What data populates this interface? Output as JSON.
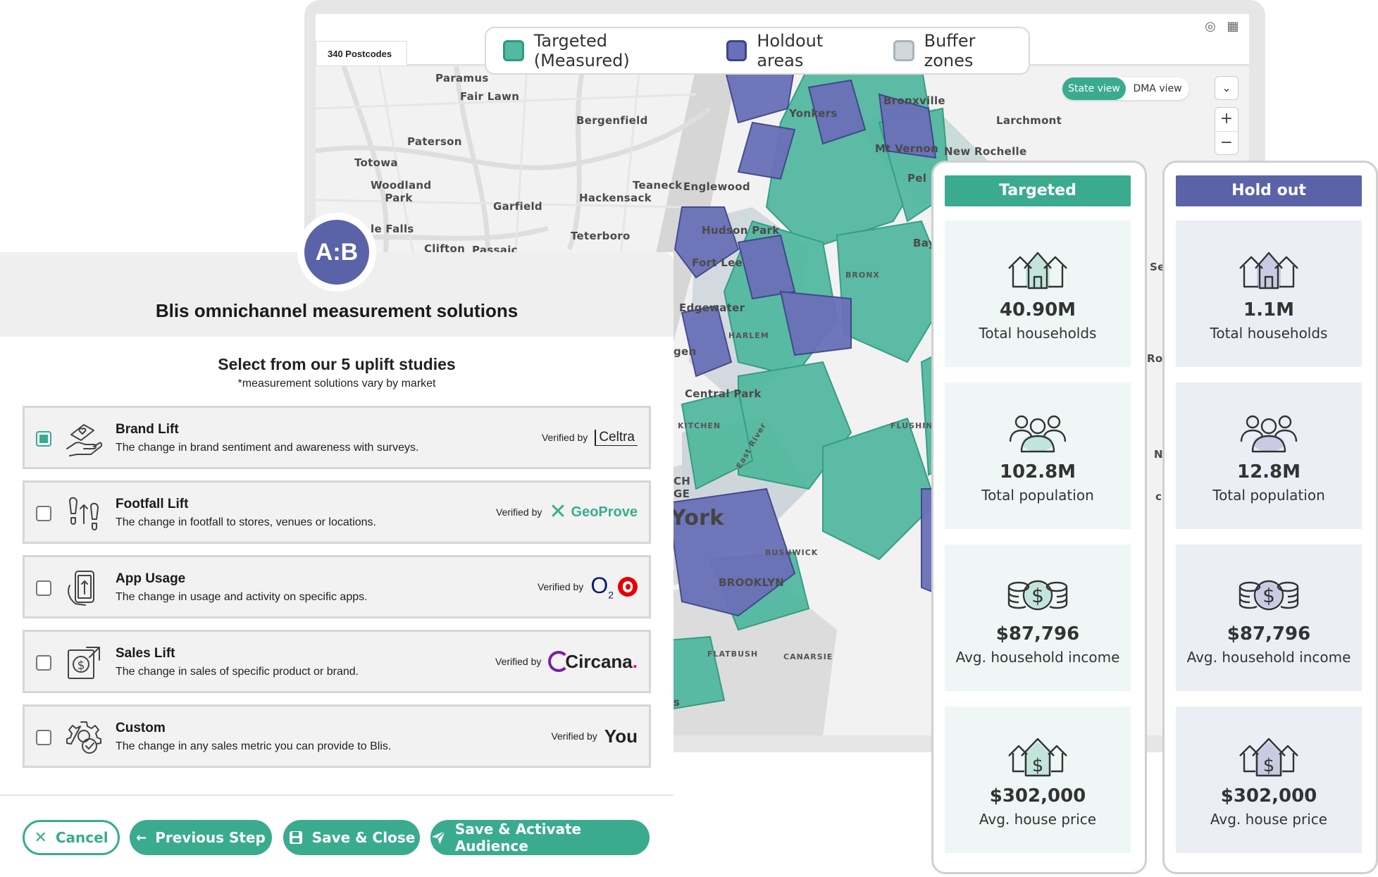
{
  "map": {
    "postcodes": "340 Postcodes",
    "legend": [
      {
        "label": "Targeted (Measured)",
        "fill": "#53b9a0",
        "border": "#2e9a80"
      },
      {
        "label": "Holdout areas",
        "fill": "#6a70b8",
        "border": "#3d4488"
      },
      {
        "label": "Buffer zones",
        "fill": "#d0d8de",
        "border": "#a8b4bd"
      }
    ],
    "view_toggle": {
      "state": "State view",
      "dma": "DMA view"
    },
    "zoom": {
      "in": "+",
      "out": "−"
    },
    "places": [
      "Paramus",
      "Fair Lawn",
      "Bergenfield",
      "Paterson",
      "Totowa",
      "Woodland Park",
      "Teaneck",
      "Englewood",
      "Garfield",
      "Hackensack",
      "le Falls",
      "Teterboro",
      "Clifton",
      "Passaic",
      "Hudson Park",
      "Fort Lee",
      "Edgewater",
      "HARLEM",
      "gen",
      "Central Park",
      "KITCHEN",
      "York",
      "BUSHWICK",
      "BROOKLYN",
      "FLATBUSH",
      "CANARSIE",
      "Yonkers",
      "Bronxville",
      "Larchmont",
      "Mt Vernon",
      "New Rochelle",
      "BRONX",
      "FLUSHING",
      "East River",
      "Pel",
      "Bay",
      "CH",
      "GE",
      "s",
      "Se",
      "Ro",
      "N",
      "c"
    ]
  },
  "targeted": {
    "header": "Targeted",
    "color": "#3aab8f",
    "stats": [
      {
        "icon": "houses-icon",
        "value": "40.90M",
        "label": "Total households"
      },
      {
        "icon": "people-icon",
        "value": "102.8M",
        "label": "Total population"
      },
      {
        "icon": "coins-icon",
        "value": "$87,796",
        "label": "Avg. household income"
      },
      {
        "icon": "house-dollar-icon",
        "value": "$302,000",
        "label": "Avg. house price"
      }
    ]
  },
  "holdout": {
    "header": "Hold out",
    "color": "#5a63a8",
    "stats": [
      {
        "icon": "houses-icon",
        "value": "1.1M",
        "label": "Total households"
      },
      {
        "icon": "people-icon",
        "value": "12.8M",
        "label": "Total population"
      },
      {
        "icon": "coins-icon",
        "value": "$87,796",
        "label": "Avg. household income"
      },
      {
        "icon": "house-dollar-icon",
        "value": "$302,000",
        "label": "Avg. house price"
      }
    ]
  },
  "panel": {
    "badge": "A:B",
    "title": "Blis omnichannel measurement solutions",
    "subtitle": "Select from our 5 uplift studies",
    "note": "*measurement solutions vary by market",
    "verified_by": "Verified by",
    "studies": [
      {
        "name": "Brand Lift",
        "desc": "The change in brand sentiment and awareness with surveys.",
        "partner": "Celtra",
        "checked": true,
        "icon": "hand-heart-icon"
      },
      {
        "name": "Footfall Lift",
        "desc": "The change in footfall to stores, venues or locations.",
        "partner": "GeoProve",
        "checked": false,
        "icon": "footprints-icon"
      },
      {
        "name": "App Usage",
        "desc": "The change in usage and activity on specific apps.",
        "partner": "O2",
        "checked": false,
        "icon": "phone-app-icon"
      },
      {
        "name": "Sales Lift",
        "desc": "The change in sales of specific product or brand.",
        "partner": "Circana.",
        "checked": false,
        "icon": "sales-dollar-icon"
      },
      {
        "name": "Custom",
        "desc": "The change in any sales metric you can provide to Blis.",
        "partner": "You",
        "checked": false,
        "icon": "gear-check-icon"
      }
    ],
    "buttons": {
      "cancel": "Cancel",
      "previous": "Previous Step",
      "save_close": "Save & Close",
      "activate": "Save & Activate Audience"
    }
  }
}
